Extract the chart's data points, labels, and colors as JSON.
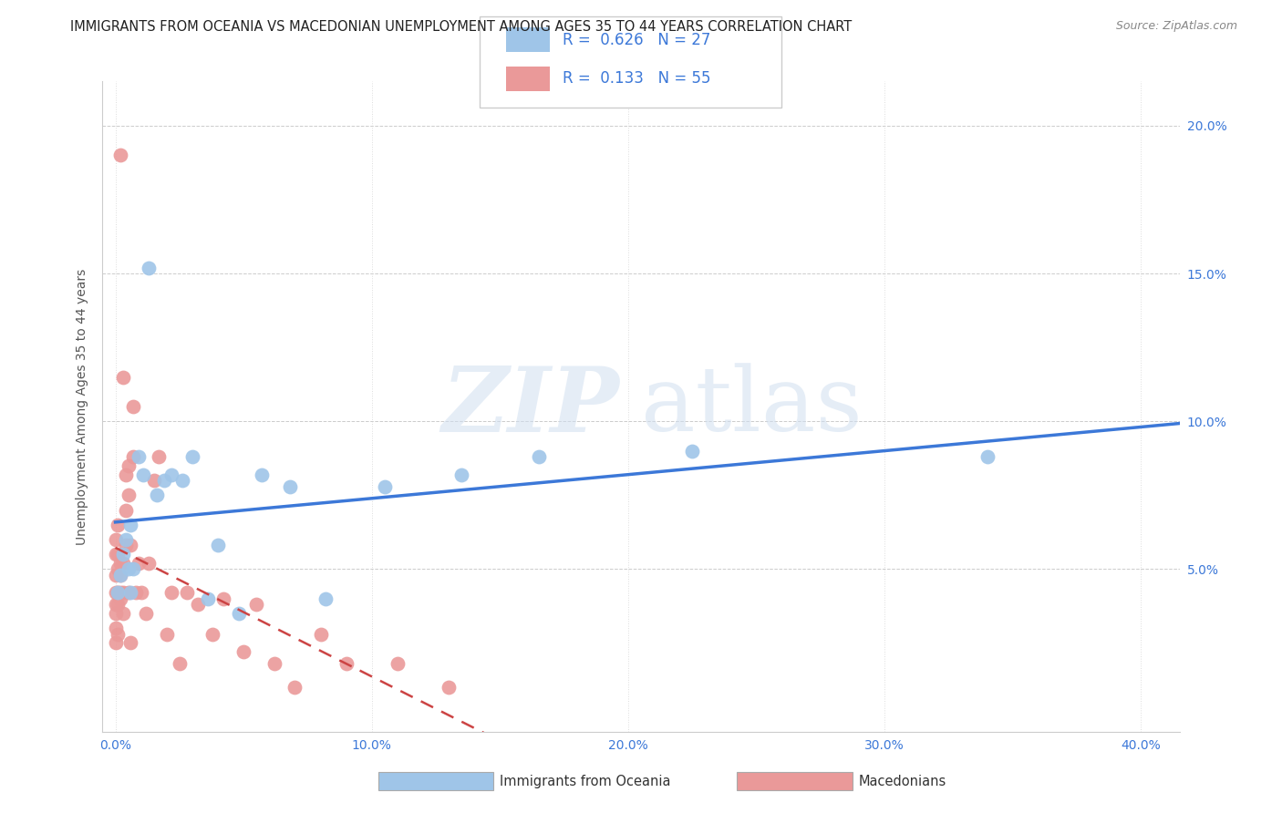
{
  "title": "IMMIGRANTS FROM OCEANIA VS MACEDONIAN UNEMPLOYMENT AMONG AGES 35 TO 44 YEARS CORRELATION CHART",
  "source": "Source: ZipAtlas.com",
  "ylabel": "Unemployment Among Ages 35 to 44 years",
  "xlabel_tick_vals": [
    0.0,
    0.1,
    0.2,
    0.3,
    0.4
  ],
  "xlabel_ticks": [
    "0.0%",
    "10.0%",
    "20.0%",
    "30.0%",
    "40.0%"
  ],
  "ylabel_tick_vals": [
    0.05,
    0.1,
    0.15,
    0.2
  ],
  "ylabel_ticks": [
    "5.0%",
    "10.0%",
    "15.0%",
    "20.0%"
  ],
  "xlim": [
    -0.005,
    0.415
  ],
  "ylim": [
    -0.005,
    0.215
  ],
  "legend_labels": [
    "Immigrants from Oceania",
    "Macedonians"
  ],
  "R_oceania": 0.626,
  "N_oceania": 27,
  "R_macedonian": 0.133,
  "N_macedonian": 55,
  "blue_scatter_color": "#9fc5e8",
  "pink_scatter_color": "#ea9999",
  "line_blue": "#3c78d8",
  "line_pink": "#cc4444",
  "watermark_zip": "ZIP",
  "watermark_atlas": "atlas",
  "background_color": "#ffffff",
  "title_fontsize": 10.5,
  "source_fontsize": 9,
  "legend_fontsize": 12,
  "axis_tick_color": "#3c78d8",
  "ylabel_color": "#555555",
  "oceania_x": [
    0.001,
    0.002,
    0.003,
    0.004,
    0.005,
    0.006,
    0.006,
    0.007,
    0.009,
    0.011,
    0.013,
    0.016,
    0.019,
    0.022,
    0.026,
    0.03,
    0.036,
    0.04,
    0.048,
    0.057,
    0.068,
    0.082,
    0.105,
    0.135,
    0.165,
    0.225,
    0.34
  ],
  "oceania_y": [
    0.042,
    0.048,
    0.055,
    0.06,
    0.05,
    0.065,
    0.042,
    0.05,
    0.088,
    0.082,
    0.152,
    0.075,
    0.08,
    0.082,
    0.08,
    0.088,
    0.04,
    0.058,
    0.035,
    0.082,
    0.078,
    0.04,
    0.078,
    0.082,
    0.088,
    0.09,
    0.088
  ],
  "macedonian_x": [
    0.0,
    0.0,
    0.0,
    0.0,
    0.0,
    0.0,
    0.0,
    0.0,
    0.001,
    0.001,
    0.001,
    0.001,
    0.001,
    0.001,
    0.002,
    0.002,
    0.002,
    0.002,
    0.002,
    0.003,
    0.003,
    0.003,
    0.003,
    0.004,
    0.004,
    0.004,
    0.005,
    0.005,
    0.005,
    0.006,
    0.006,
    0.007,
    0.007,
    0.008,
    0.009,
    0.01,
    0.012,
    0.013,
    0.015,
    0.017,
    0.02,
    0.022,
    0.025,
    0.028,
    0.032,
    0.038,
    0.042,
    0.05,
    0.055,
    0.062,
    0.07,
    0.08,
    0.09,
    0.11,
    0.13
  ],
  "macedonian_y": [
    0.042,
    0.048,
    0.035,
    0.055,
    0.06,
    0.038,
    0.03,
    0.025,
    0.042,
    0.038,
    0.028,
    0.05,
    0.055,
    0.065,
    0.042,
    0.04,
    0.048,
    0.052,
    0.19,
    0.035,
    0.042,
    0.052,
    0.115,
    0.07,
    0.058,
    0.082,
    0.042,
    0.075,
    0.085,
    0.025,
    0.058,
    0.105,
    0.088,
    0.042,
    0.052,
    0.042,
    0.035,
    0.052,
    0.08,
    0.088,
    0.028,
    0.042,
    0.018,
    0.042,
    0.038,
    0.028,
    0.04,
    0.022,
    0.038,
    0.018,
    0.01,
    0.028,
    0.018,
    0.018,
    0.01
  ]
}
